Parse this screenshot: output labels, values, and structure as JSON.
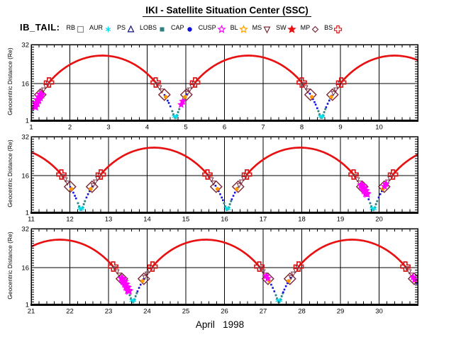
{
  "header": {
    "title": "IKI - Satellite Situation Center (SSC)",
    "dataset_label": "IB_TAIL:"
  },
  "legend": {
    "items": [
      {
        "label": "RB",
        "symbol": "open-square",
        "color": "#8c8c8c"
      },
      {
        "label": "AUR",
        "symbol": "asterisk",
        "color": "#00dde8"
      },
      {
        "label": "PS",
        "symbol": "open-triangle",
        "color": "#101080"
      },
      {
        "label": "LOBS",
        "symbol": "filled-square",
        "color": "#2e8080"
      },
      {
        "label": "CAP",
        "symbol": "filled-circle",
        "color": "#1010e0"
      },
      {
        "label": "CUSP",
        "symbol": "open-star",
        "color": "#ff00ff"
      },
      {
        "label": "BL",
        "symbol": "open-star",
        "color": "#ffa000"
      },
      {
        "label": "MS",
        "symbol": "open-triangle-down",
        "color": "#7a2838"
      },
      {
        "label": "SW",
        "symbol": "filled-star",
        "color": "#e81010"
      },
      {
        "label": "MP",
        "symbol": "open-diamond",
        "color": "#7a2838"
      },
      {
        "label": "BS",
        "symbol": "open-cross",
        "color": "#d81818"
      }
    ]
  },
  "footer": {
    "xlabel": "April   1998"
  },
  "chart_data": {
    "type": "line",
    "title": "IKI - Satellite Situation Center (SSC)",
    "satellite": "IB_TAIL",
    "xlabel": "April 1998",
    "ylabel": "Geocentric Distance (Re)",
    "ylim": [
      1,
      32
    ],
    "y_major_ticks": [
      1,
      16,
      32
    ],
    "y_minor_step_re": 1,
    "y_gridlines": [
      16
    ],
    "x_minor_step_days": 0.2,
    "panels": [
      {
        "x_start": 1,
        "x_end": 11,
        "x_ticks": [
          1,
          2,
          3,
          4,
          5,
          6,
          7,
          8,
          9,
          10
        ]
      },
      {
        "x_start": 11,
        "x_end": 21,
        "x_ticks": [
          11,
          12,
          13,
          14,
          15,
          16,
          17,
          18,
          19,
          20
        ]
      },
      {
        "x_start": 21,
        "x_end": 31,
        "x_ticks": [
          21,
          22,
          23,
          24,
          25,
          26,
          27,
          28,
          29,
          30
        ]
      }
    ],
    "orbit": {
      "perigee_day": 0.95,
      "period_days": 3.78,
      "perigee_re": 1.8,
      "apogee_re": 27.5
    },
    "regions": [
      {
        "name": "SW",
        "r_min": 16.5,
        "r_max": 99,
        "color": "#e81010",
        "style": "line"
      },
      {
        "name": "MS",
        "r_min": 12.0,
        "r_max": 16.5,
        "color": "#7a2838",
        "style": "triangle-down",
        "every": 0.06,
        "size": 2.8
      },
      {
        "name": "CAP",
        "r_min": 5.8,
        "r_max": 12.0,
        "color": "#1212dd",
        "style": "square",
        "every": 0.038,
        "size": 2.6
      },
      {
        "name": "LOBS",
        "r_min": 2.3,
        "r_max": 5.8,
        "color": "#2e8080",
        "style": "square",
        "every": 0.03,
        "size": 2.8
      },
      {
        "name": "RB",
        "r_min": 0,
        "r_max": 2.3,
        "color": "#8a8a8a",
        "style": "square",
        "every": 0.022,
        "size": 2.4
      }
    ],
    "boundary_crossings": [
      {
        "name": "BS",
        "r_re": 16.5,
        "symbol": "open-cross",
        "color": "#d81818",
        "size": 6.5,
        "stroke": 1.7
      },
      {
        "name": "MP",
        "r_re": 11.5,
        "symbol": "open-diamond",
        "color": "#7a2838",
        "size": 8,
        "stroke": 1.4
      },
      {
        "name": "BL",
        "r_re": 10.6,
        "symbol": "filled-circle",
        "color": "#ff9800",
        "size": 2.7,
        "stroke": 1
      }
    ],
    "cusp_events": [
      {
        "day": 1.16,
        "count": 5
      },
      {
        "day": 4.9,
        "count": 2
      },
      {
        "day": 19.6,
        "count": 4
      },
      {
        "day": 20.16,
        "count": 2
      },
      {
        "day": 23.42,
        "count": 5
      },
      {
        "day": 27.1,
        "count": 2
      },
      {
        "day": 30.9,
        "count": 2
      }
    ],
    "cusp_color": "#ff00ff",
    "aurora": {
      "r_re": 2.6,
      "color": "#00dce8"
    }
  }
}
